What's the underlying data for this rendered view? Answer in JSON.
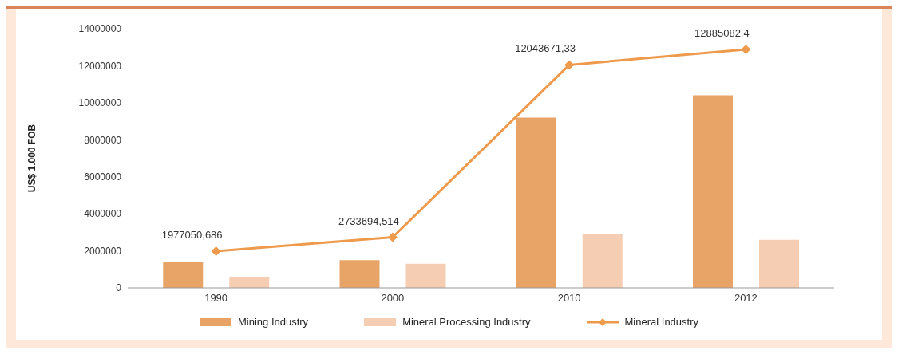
{
  "chart_data": {
    "type": "bar",
    "ylabel": "US$ 1.000 FOB",
    "categories": [
      "1990",
      "2000",
      "2010",
      "2012"
    ],
    "series": [
      {
        "name": "Mining Industry",
        "color": "#e8a466",
        "values": [
          1400000,
          1500000,
          9200000,
          10400000
        ]
      },
      {
        "name": "Mineral Processing Industry",
        "color": "#f5cdb2",
        "values": [
          600000,
          1300000,
          2900000,
          2600000
        ]
      },
      {
        "name": "Mineral Industry",
        "type": "line",
        "color": "#ee9a4d",
        "values": [
          1977050.686,
          2733694.514,
          12043671.33,
          12885082.4
        ],
        "value_labels": [
          "1977050,686",
          "2733694,514",
          "12043671,33",
          "12885082,4"
        ]
      }
    ],
    "ylim": [
      0,
      14000000
    ],
    "yticks": [
      0,
      2000000,
      4000000,
      6000000,
      8000000,
      10000000,
      12000000,
      14000000
    ],
    "grid": false,
    "legend": "bottom",
    "marker": "diamond"
  }
}
